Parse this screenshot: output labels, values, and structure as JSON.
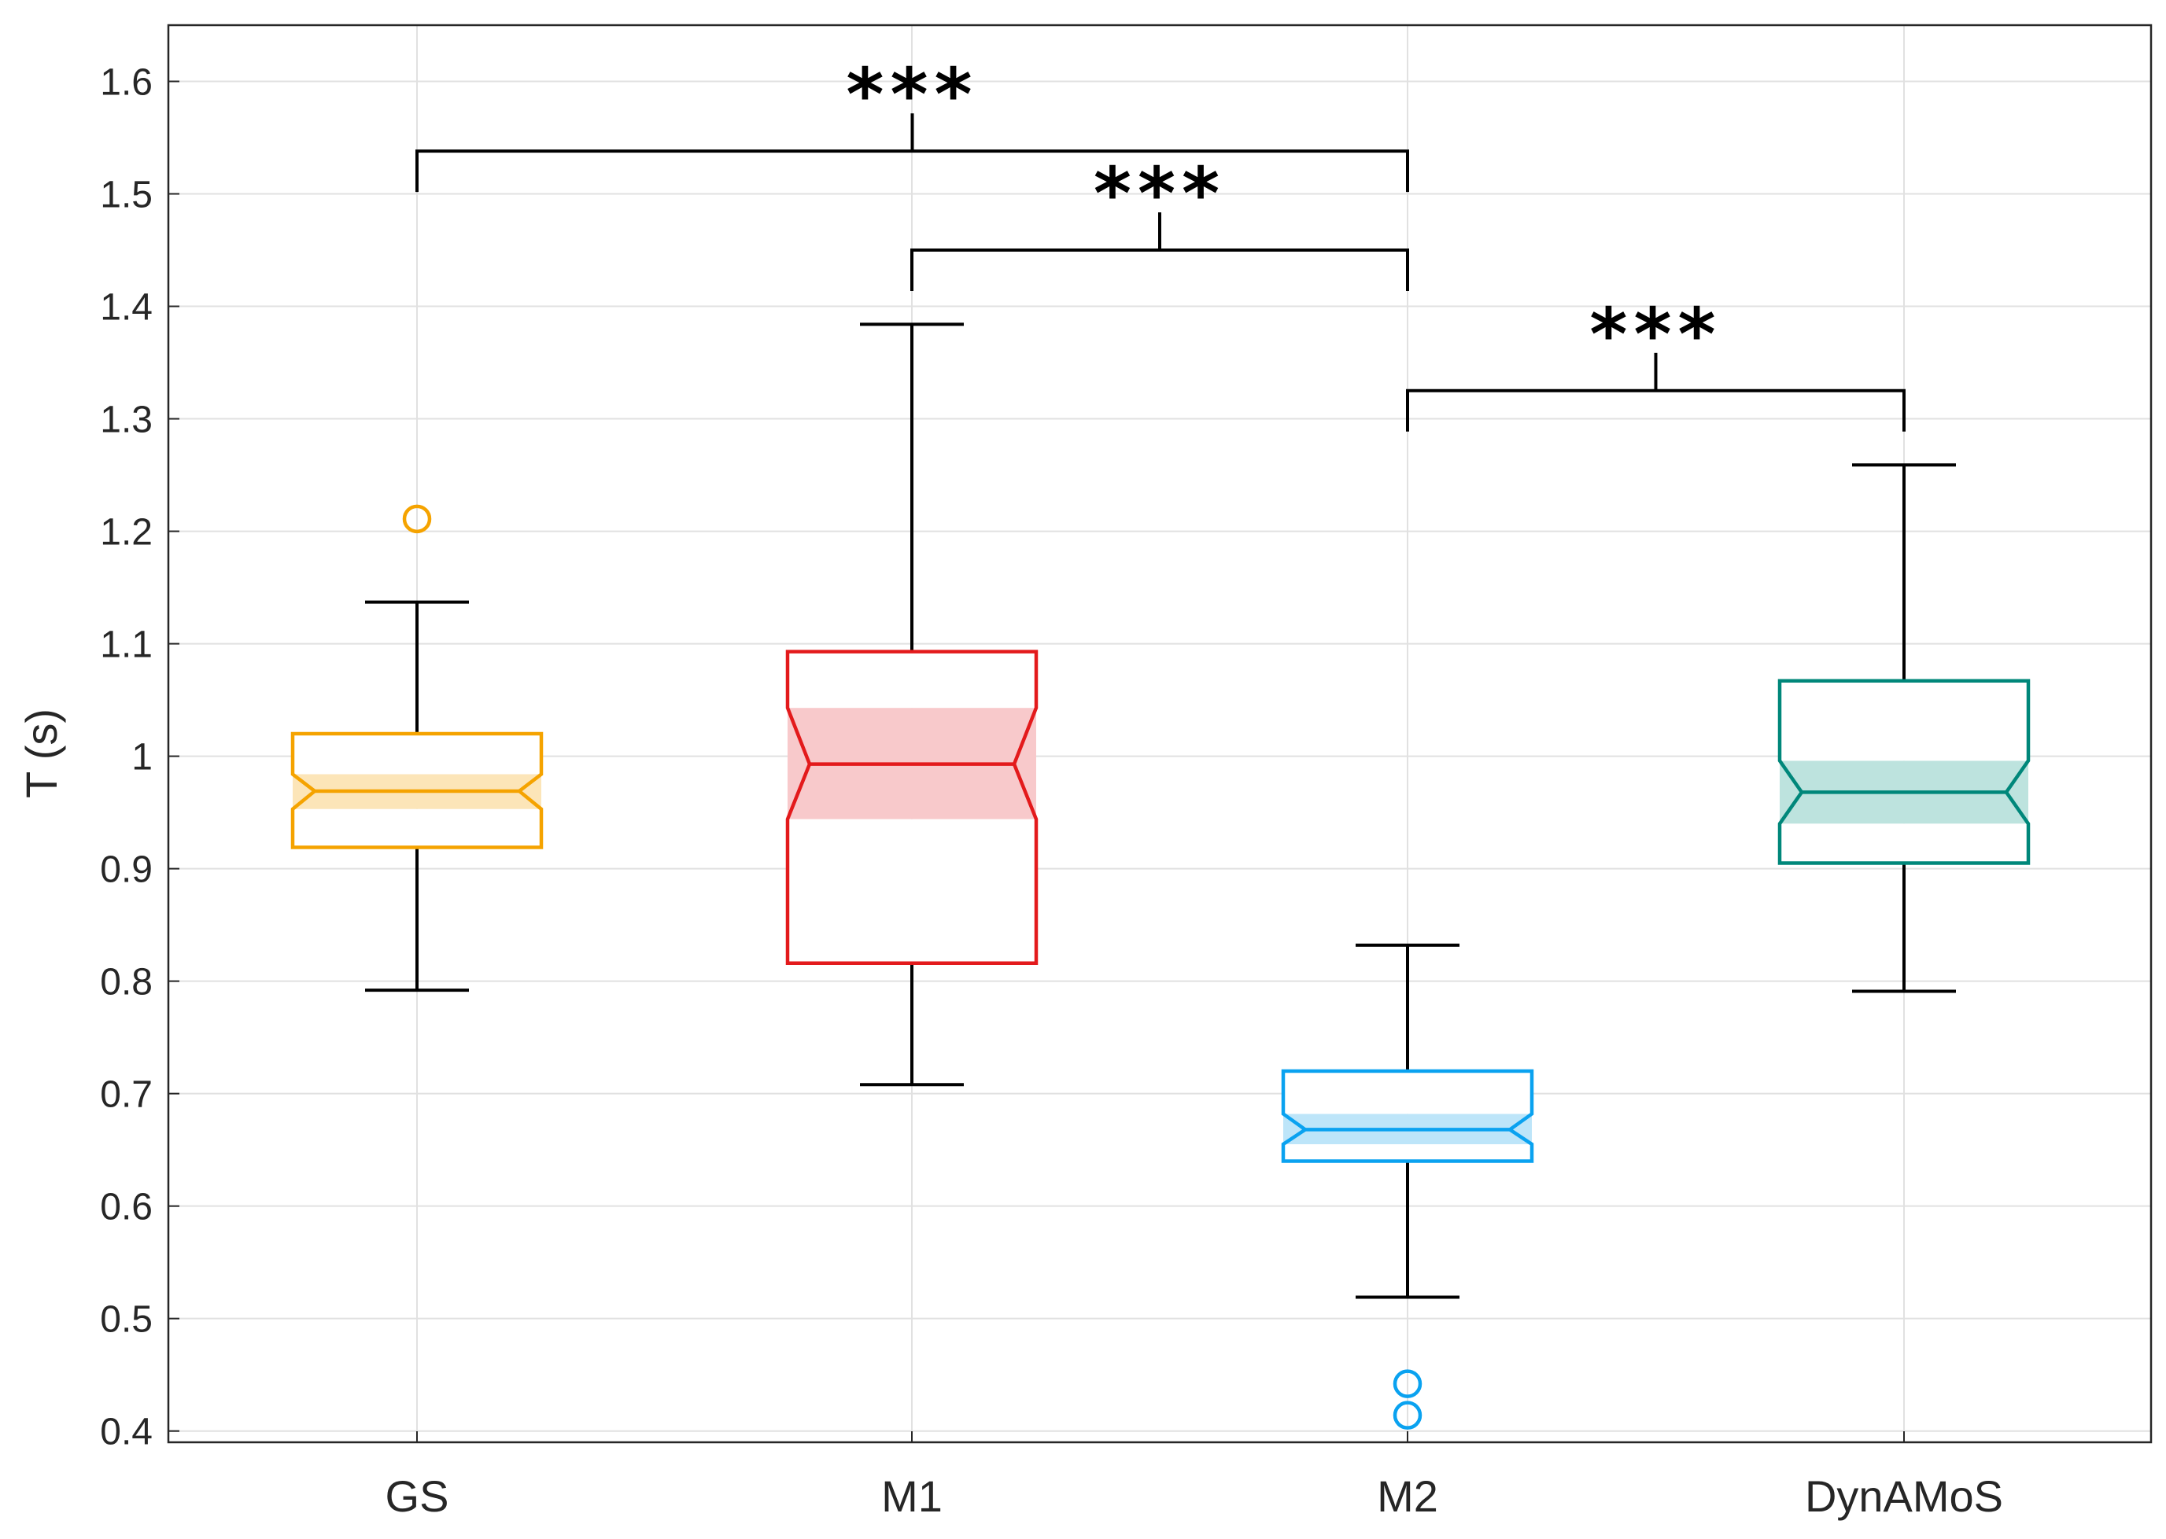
{
  "chart_data": {
    "type": "boxplot",
    "title": "",
    "xlabel": "",
    "ylabel": "T (s)",
    "ylim": [
      0.39,
      1.65
    ],
    "yticks": [
      0.4,
      0.5,
      0.6,
      0.7,
      0.8,
      0.9,
      1,
      1.1,
      1.2,
      1.3,
      1.4,
      1.5,
      1.6
    ],
    "ytick_labels": [
      "0.4",
      "0.5",
      "0.6",
      "0.7",
      "0.8",
      "0.9",
      "1",
      "1.1",
      "1.2",
      "1.3",
      "1.4",
      "1.5",
      "1.6"
    ],
    "grid": true,
    "notched": true,
    "categories": [
      "GS",
      "M1",
      "M2",
      "DynAMoS"
    ],
    "boxes": [
      {
        "name": "GS",
        "color": "#F5A300",
        "fill": "#FCE5B8",
        "whisker_low": 0.792,
        "q1": 0.919,
        "notch_low": 0.953,
        "median": 0.969,
        "notch_high": 0.984,
        "q3": 1.02,
        "whisker_high": 1.137,
        "outliers": [
          1.211
        ]
      },
      {
        "name": "M1",
        "color": "#E31A1C",
        "fill": "#F8C9CB",
        "whisker_low": 0.708,
        "q1": 0.816,
        "notch_low": 0.944,
        "median": 0.993,
        "notch_high": 1.043,
        "q3": 1.093,
        "whisker_high": 1.384,
        "outliers": []
      },
      {
        "name": "M2",
        "color": "#0AA2F0",
        "fill": "#BDE5F9",
        "whisker_low": 0.519,
        "q1": 0.64,
        "notch_low": 0.655,
        "median": 0.668,
        "notch_high": 0.682,
        "q3": 0.72,
        "whisker_high": 0.832,
        "outliers": [
          0.442,
          0.414
        ]
      },
      {
        "name": "DynAMoS",
        "color": "#00877A",
        "fill": "#BDE3DE",
        "whisker_low": 0.791,
        "q1": 0.905,
        "notch_low": 0.94,
        "median": 0.968,
        "notch_high": 0.996,
        "q3": 1.067,
        "whisker_high": 1.259,
        "outliers": []
      }
    ],
    "significance": [
      {
        "from": "GS",
        "to": "M2",
        "y": 1.538,
        "label": "***"
      },
      {
        "from": "M1",
        "to": "M2",
        "y": 1.45,
        "label": "***"
      },
      {
        "from": "M2",
        "to": "DynAMoS",
        "y": 1.325,
        "label": "***"
      }
    ]
  }
}
